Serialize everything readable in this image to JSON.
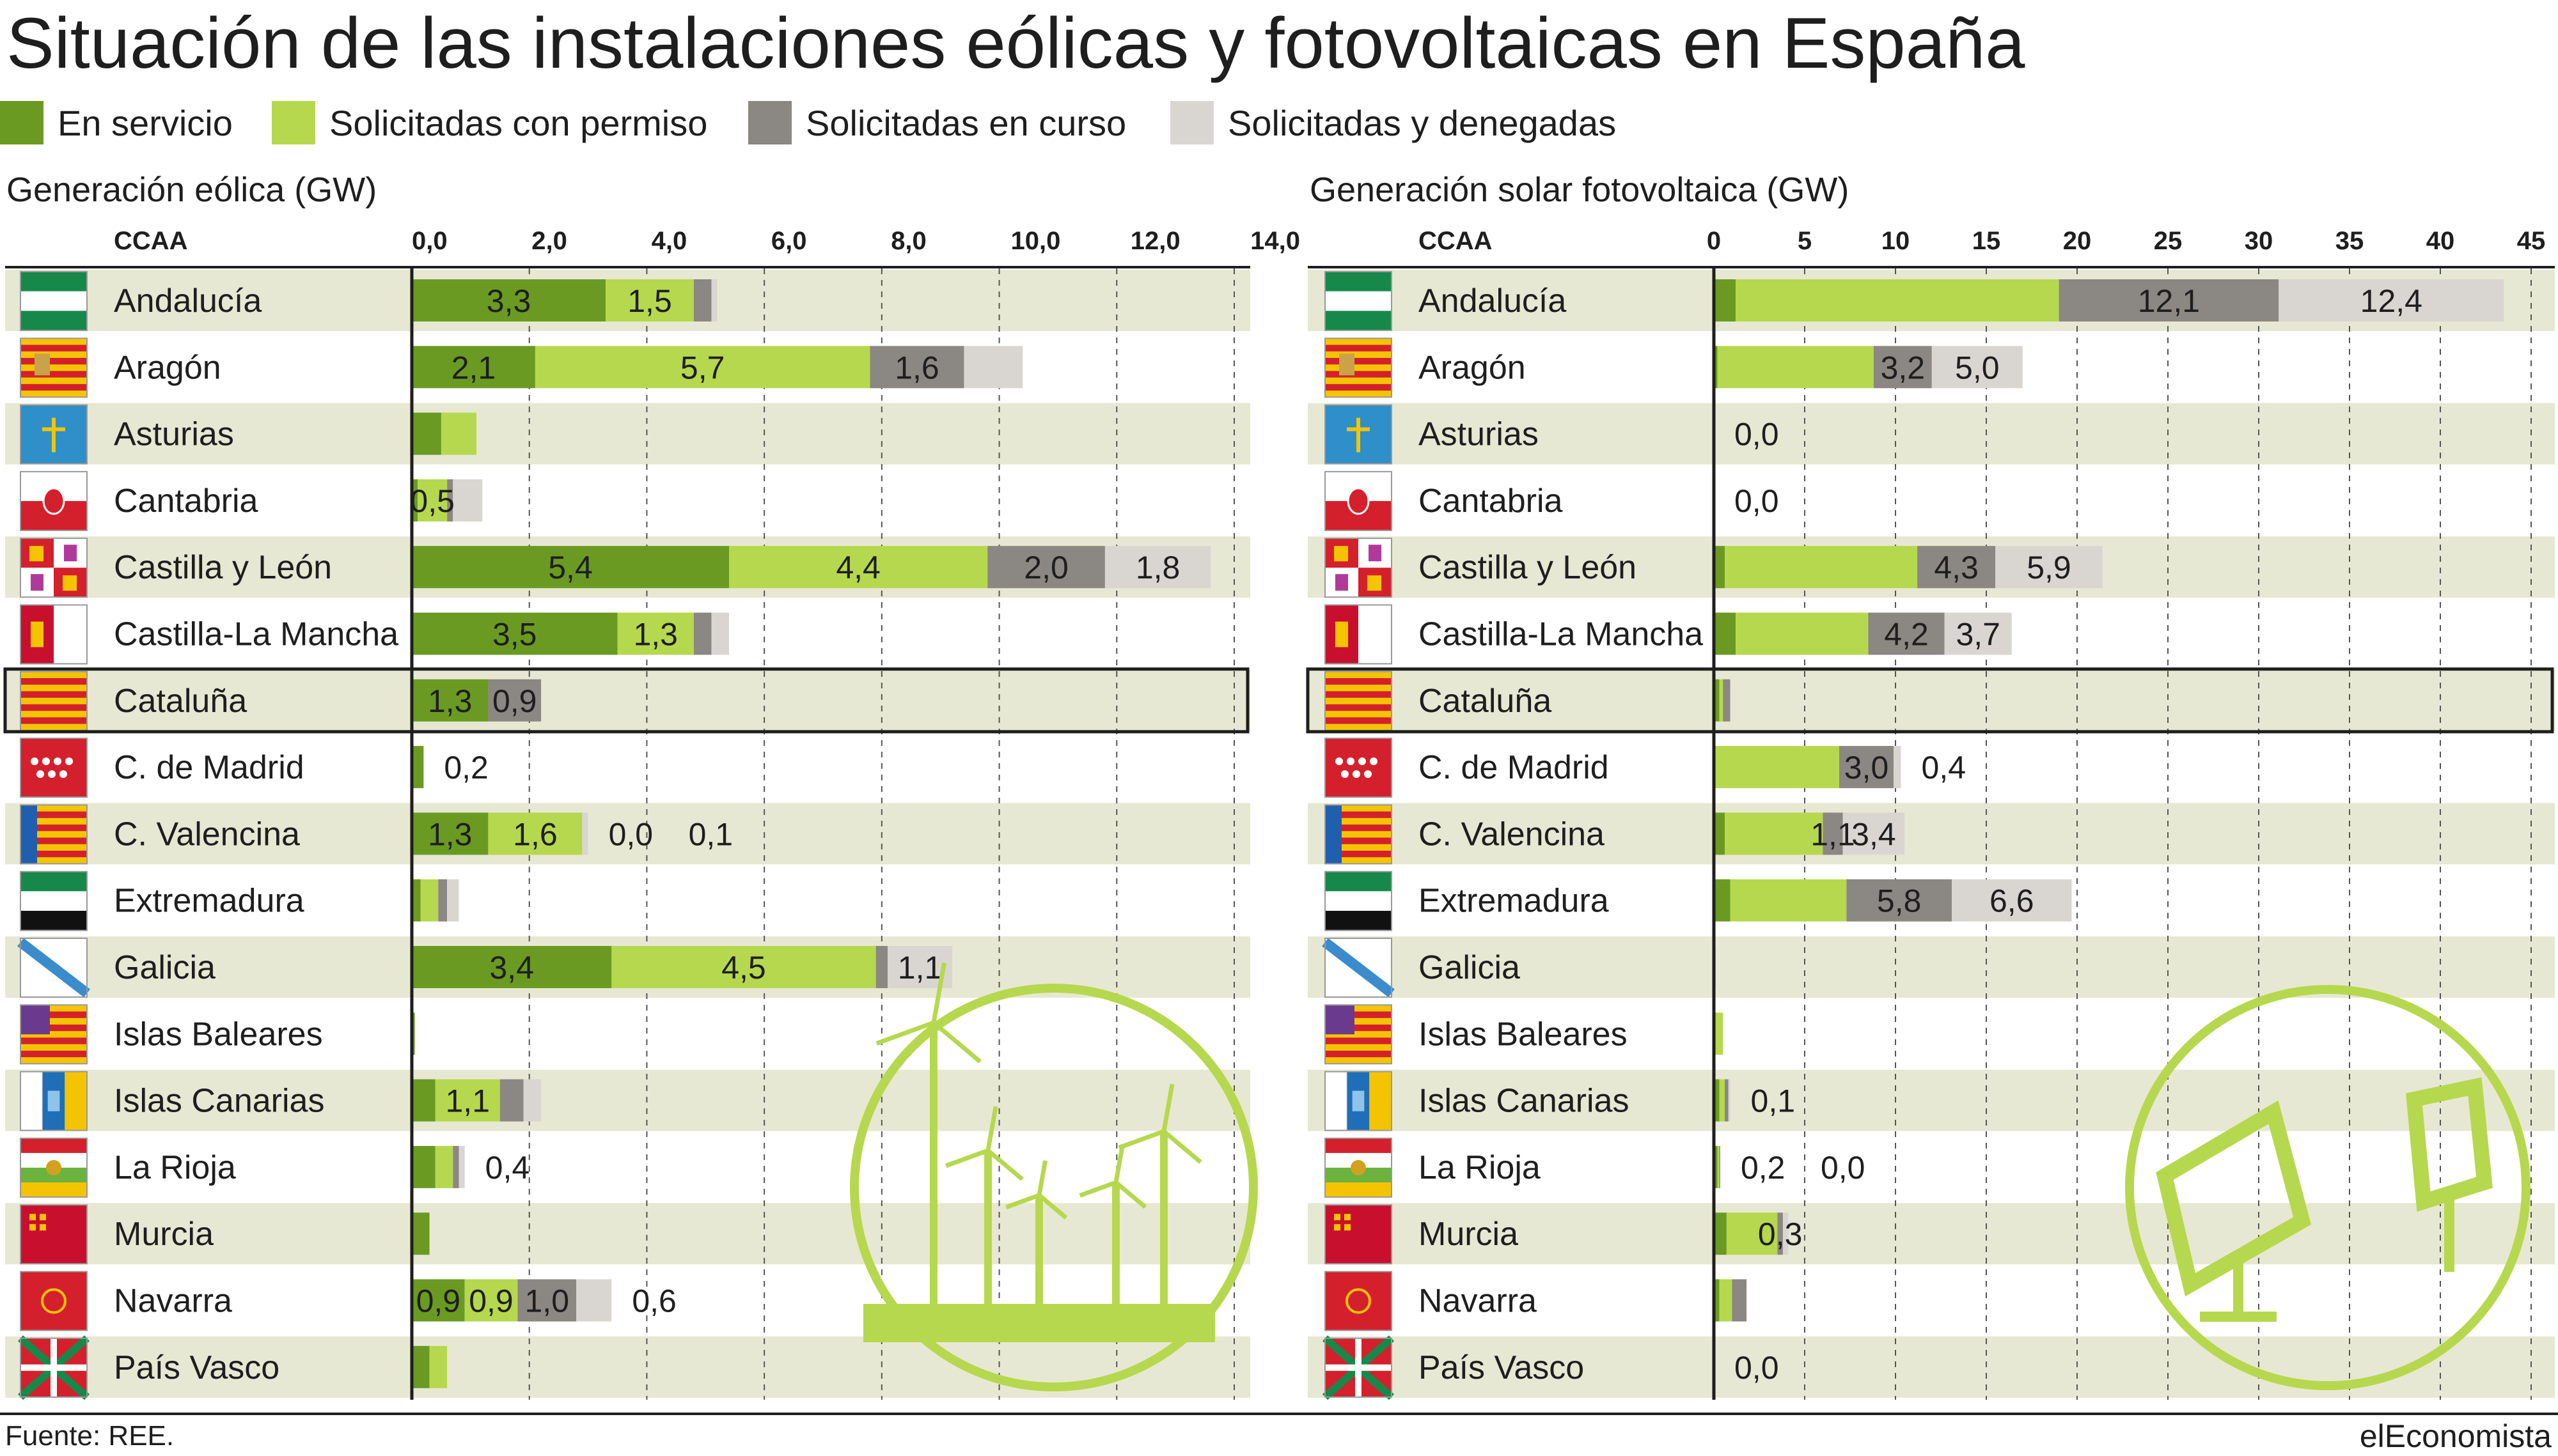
{
  "title": "Situación de las instalaciones eólicas y fotovoltaicas en España",
  "source": "Fuente: REE.",
  "brand": "elEconomista",
  "colors": {
    "en_servicio": "#6a9a22",
    "con_permiso": "#b6d84e",
    "en_curso": "#8b8782",
    "denegadas": "#d9d6d2",
    "band": "#e7e8d3",
    "icon": "#b6d84e"
  },
  "legend": [
    {
      "label": "En servicio",
      "color": "#6a9a22"
    },
    {
      "label": "Solicitadas con permiso",
      "color": "#b6d84e"
    },
    {
      "label": "Solicitadas en curso",
      "color": "#8b8782"
    },
    {
      "label": "Solicitadas y denegadas",
      "color": "#d9d6d2"
    }
  ],
  "column_header": "CCAA",
  "flags": {
    "Andalucía": "andalucia-flag-icon",
    "Aragón": "aragon-flag-icon",
    "Asturias": "asturias-flag-icon",
    "Cantabria": "cantabria-flag-icon",
    "Castilla y León": "castilla-leon-flag-icon",
    "Castilla-La Mancha": "castilla-la-mancha-flag-icon",
    "Cataluña": "cataluna-flag-icon",
    "C. de Madrid": "madrid-flag-icon",
    "C. Valencina": "valencia-flag-icon",
    "Extremadura": "extremadura-flag-icon",
    "Galicia": "galicia-flag-icon",
    "Islas Baleares": "baleares-flag-icon",
    "Islas Canarias": "canarias-flag-icon",
    "La Rioja": "la-rioja-flag-icon",
    "Murcia": "murcia-flag-icon",
    "Navarra": "navarra-flag-icon",
    "País Vasco": "pais-vasco-flag-icon"
  },
  "highlighted_row": "Cataluña",
  "chart_data": [
    {
      "type": "bar",
      "orientation": "horizontal",
      "stacked": true,
      "title": "Generación eólica (GW)",
      "categories": [
        "Andalucía",
        "Aragón",
        "Asturias",
        "Cantabria",
        "Castilla y León",
        "Castilla-La Mancha",
        "Cataluña",
        "C. de Madrid",
        "C. Valencina",
        "Extremadura",
        "Galicia",
        "Islas Baleares",
        "Islas Canarias",
        "La Rioja",
        "Murcia",
        "Navarra",
        "País Vasco"
      ],
      "xlim": [
        0,
        14
      ],
      "ticks": [
        "0,0",
        "2,0",
        "4,0",
        "6,0",
        "8,0",
        "10,0",
        "12,0",
        "14,0"
      ],
      "tick_values": [
        0,
        2,
        4,
        6,
        8,
        10,
        12,
        14
      ],
      "grid": "vertical dashed",
      "series": [
        {
          "name": "En servicio",
          "values": [
            3.3,
            2.1,
            0.5,
            0.1,
            5.4,
            3.5,
            1.3,
            0.2,
            1.3,
            0.15,
            3.4,
            0.05,
            0.4,
            0.4,
            0.3,
            0.9,
            0.3
          ]
        },
        {
          "name": "Solicitadas con permiso",
          "values": [
            1.5,
            5.7,
            0.6,
            0.5,
            4.4,
            1.3,
            0.0,
            0.0,
            1.6,
            0.3,
            4.5,
            0.0,
            1.1,
            0.3,
            0.0,
            0.9,
            0.3
          ]
        },
        {
          "name": "Solicitadas en curso",
          "values": [
            0.3,
            1.6,
            0.0,
            0.1,
            2.0,
            0.3,
            0.9,
            0.0,
            0.0,
            0.15,
            0.2,
            0.0,
            0.4,
            0.1,
            0.0,
            1.0,
            0.0
          ]
        },
        {
          "name": "Solicitadas y denegadas",
          "values": [
            0.1,
            1.0,
            0.0,
            0.5,
            1.8,
            0.3,
            0.0,
            0.0,
            0.1,
            0.2,
            1.1,
            0.0,
            0.3,
            0.1,
            0.0,
            0.6,
            0.0
          ]
        }
      ],
      "data_labels": [
        [
          {
            "s": 0,
            "text": "3,3"
          },
          {
            "s": 1,
            "text": "1,5"
          }
        ],
        [
          {
            "s": 0,
            "text": "2,1"
          },
          {
            "s": 1,
            "text": "5,7"
          },
          {
            "s": 2,
            "text": "1,6"
          }
        ],
        [],
        [
          {
            "s": 1,
            "text": "0,5"
          }
        ],
        [
          {
            "s": 0,
            "text": "5,4"
          },
          {
            "s": 1,
            "text": "4,4"
          },
          {
            "s": 2,
            "text": "2,0"
          },
          {
            "s": 3,
            "text": "1,8"
          }
        ],
        [
          {
            "s": 0,
            "text": "3,5"
          },
          {
            "s": 1,
            "text": "1,3"
          }
        ],
        [
          {
            "s": 0,
            "text": "1,3"
          },
          {
            "s": 2,
            "text": "0,9"
          }
        ],
        [
          {
            "s": "out",
            "text": "0,2"
          }
        ],
        [
          {
            "s": 0,
            "text": "1,3"
          },
          {
            "s": 1,
            "text": "1,6"
          },
          {
            "s": "out",
            "text": "0,0"
          },
          {
            "s": "out",
            "text": "0,1"
          }
        ],
        [],
        [
          {
            "s": 0,
            "text": "3,4"
          },
          {
            "s": 1,
            "text": "4,5"
          },
          {
            "s": 3,
            "text": "1,1"
          }
        ],
        [],
        [
          {
            "s": 1,
            "text": "1,1"
          }
        ],
        [
          {
            "s": "out",
            "text": "0,4"
          }
        ],
        [],
        [
          {
            "s": 0,
            "text": "0,9"
          },
          {
            "s": 1,
            "text": "0,9"
          },
          {
            "s": 2,
            "text": "1,0"
          },
          {
            "s": "out",
            "text": "0,6"
          }
        ],
        []
      ]
    },
    {
      "type": "bar",
      "orientation": "horizontal",
      "stacked": true,
      "title": "Generación solar fotovoltaica (GW)",
      "categories": [
        "Andalucía",
        "Aragón",
        "Asturias",
        "Cantabria",
        "Castilla y León",
        "Castilla-La Mancha",
        "Cataluña",
        "C. de Madrid",
        "C. Valencina",
        "Extremadura",
        "Galicia",
        "Islas Baleares",
        "Islas Canarias",
        "La Rioja",
        "Murcia",
        "Navarra",
        "País Vasco"
      ],
      "xlim": [
        0,
        45
      ],
      "ticks": [
        "0",
        "5",
        "10",
        "15",
        "20",
        "25",
        "30",
        "35",
        "40",
        "45"
      ],
      "tick_values": [
        0,
        5,
        10,
        15,
        20,
        25,
        30,
        35,
        40,
        45
      ],
      "grid": "vertical dashed",
      "series": [
        {
          "name": "En servicio",
          "values": [
            1.2,
            0.2,
            0.0,
            0.0,
            0.6,
            1.2,
            0.3,
            0.1,
            0.6,
            0.9,
            0.05,
            0.1,
            0.3,
            0.2,
            0.7,
            0.3,
            0.0
          ]
        },
        {
          "name": "Solicitadas con permiso",
          "values": [
            17.8,
            8.6,
            0.0,
            0.0,
            10.6,
            7.3,
            0.2,
            6.8,
            5.4,
            6.4,
            0.05,
            0.4,
            0.3,
            0.1,
            2.8,
            0.7,
            0.0
          ]
        },
        {
          "name": "Solicitadas en curso",
          "values": [
            12.1,
            3.2,
            0.0,
            0.0,
            4.3,
            4.2,
            0.4,
            3.0,
            1.1,
            5.8,
            0.0,
            0.0,
            0.2,
            0.05,
            0.3,
            0.8,
            0.0
          ]
        },
        {
          "name": "Solicitadas y denegadas",
          "values": [
            12.4,
            5.0,
            0.0,
            0.0,
            5.9,
            3.7,
            0.0,
            0.4,
            3.4,
            6.6,
            0.0,
            0.0,
            0.1,
            0.0,
            0.3,
            0.0,
            0.0
          ]
        }
      ],
      "data_labels": [
        [
          {
            "s": 2,
            "text": "12,1"
          },
          {
            "s": 3,
            "text": "12,4"
          }
        ],
        [
          {
            "s": 2,
            "text": "3,2"
          },
          {
            "s": 3,
            "text": "5,0"
          }
        ],
        [
          {
            "s": "out",
            "text": "0,0"
          }
        ],
        [
          {
            "s": "out",
            "text": "0,0"
          }
        ],
        [
          {
            "s": 2,
            "text": "4,3"
          },
          {
            "s": 3,
            "text": "5,9"
          }
        ],
        [
          {
            "s": 2,
            "text": "4,2"
          },
          {
            "s": 3,
            "text": "3,7"
          }
        ],
        [],
        [
          {
            "s": 2,
            "text": "3,0"
          },
          {
            "s": "out",
            "text": "0,4"
          }
        ],
        [
          {
            "s": 2,
            "text": "1,1"
          },
          {
            "s": 3,
            "text": "3,4"
          }
        ],
        [
          {
            "s": 2,
            "text": "5,8"
          },
          {
            "s": 3,
            "text": "6,6"
          }
        ],
        [],
        [],
        [
          {
            "s": "out",
            "text": "0,1"
          }
        ],
        [
          {
            "s": "out",
            "text": "0,2"
          },
          {
            "s": "out",
            "text": "0,0"
          }
        ],
        [
          {
            "s": 2,
            "text": "0,3"
          }
        ],
        [],
        [
          {
            "s": "out",
            "text": "0,0"
          }
        ]
      ]
    }
  ]
}
